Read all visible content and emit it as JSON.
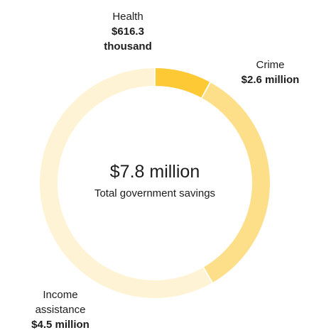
{
  "chart_data": {
    "type": "pie",
    "donut": true,
    "center_value": "$7.8 million",
    "center_label": "Total government savings",
    "slices": [
      {
        "name": "Health",
        "value": 616.3,
        "label_value": "$616.3 thousand",
        "label_value_lines": [
          "$616.3",
          "thousand"
        ],
        "color": "#fdc935"
      },
      {
        "name": "Crime",
        "value": 2600,
        "label_value": "$2.6 million",
        "label_value_lines": [
          "$2.6 million"
        ],
        "color": "#fddf8a"
      },
      {
        "name": "Income assistance",
        "name_lines": [
          "Income",
          "assistance"
        ],
        "value": 4500,
        "label_value": "$4.5 million",
        "label_value_lines": [
          "$4.5 million"
        ],
        "color": "#fef3d4"
      }
    ],
    "value_unit": "thousand $",
    "start": "top",
    "direction": "clockwise"
  }
}
